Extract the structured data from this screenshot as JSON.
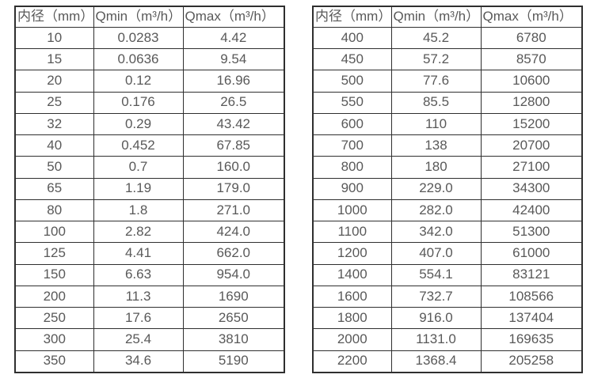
{
  "colors": {
    "border": "#2f2f2f",
    "text": "#595959",
    "background": "#ffffff"
  },
  "tables": [
    {
      "headers": [
        "内径（mm）",
        "Qmin（m³/h）",
        "Qmax（m³/h）"
      ],
      "rows": [
        [
          "10",
          "0.0283",
          "4.42"
        ],
        [
          "15",
          "0.0636",
          "9.54"
        ],
        [
          "20",
          "0.12",
          "16.96"
        ],
        [
          "25",
          "0.176",
          "26.5"
        ],
        [
          "32",
          "0.29",
          "43.42"
        ],
        [
          "40",
          "0.452",
          "67.85"
        ],
        [
          "50",
          "0.7",
          "160.0"
        ],
        [
          "65",
          "1.19",
          "179.0"
        ],
        [
          "80",
          "1.8",
          "271.0"
        ],
        [
          "100",
          "2.82",
          "424.0"
        ],
        [
          "125",
          "4.41",
          "662.0"
        ],
        [
          "150",
          "6.63",
          "954.0"
        ],
        [
          "200",
          "11.3",
          "1690"
        ],
        [
          "250",
          "17.6",
          "2650"
        ],
        [
          "300",
          "25.4",
          "3810"
        ],
        [
          "350",
          "34.6",
          "5190"
        ]
      ]
    },
    {
      "headers": [
        "内径（mm）",
        "Qmin（m³/h）",
        "Qmax（m³/h）"
      ],
      "rows": [
        [
          "400",
          "45.2",
          "6780"
        ],
        [
          "450",
          "57.2",
          "8570"
        ],
        [
          "500",
          "77.6",
          "10600"
        ],
        [
          "550",
          "85.5",
          "12800"
        ],
        [
          "600",
          "110",
          "15200"
        ],
        [
          "700",
          "138",
          "20700"
        ],
        [
          "800",
          "180",
          "27100"
        ],
        [
          "900",
          "229.0",
          "34300"
        ],
        [
          "1000",
          "282.0",
          "42400"
        ],
        [
          "1100",
          "342.0",
          "51300"
        ],
        [
          "1200",
          "407.0",
          "61000"
        ],
        [
          "1400",
          "554.1",
          "83121"
        ],
        [
          "1600",
          "732.7",
          "108566"
        ],
        [
          "1800",
          "916.0",
          "137404"
        ],
        [
          "2000",
          "1131.0",
          "169635"
        ],
        [
          "2200",
          "1368.4",
          "205258"
        ]
      ]
    }
  ]
}
